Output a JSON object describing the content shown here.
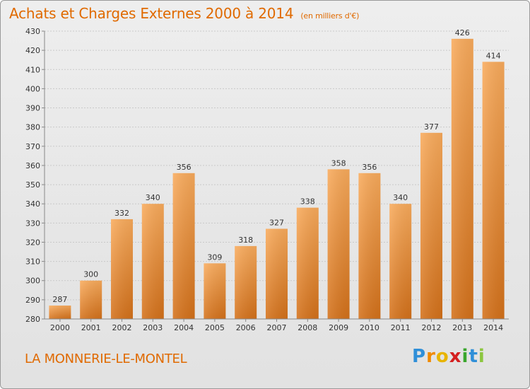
{
  "title": "Achats et Charges Externes 2000 à 2014",
  "subtitle": "(en milliers d'€)",
  "town": "LA MONNERIE-LE-MONTEL",
  "logo": {
    "text": "Proxiti",
    "letters": [
      "P",
      "r",
      "o",
      "x",
      "i",
      "t",
      "i"
    ],
    "colors": [
      "#2f8fd8",
      "#f08a00",
      "#e8b400",
      "#d42020",
      "#3aa62d",
      "#2f8fd8",
      "#8cc63f"
    ]
  },
  "colors": {
    "accent": "#e06a00",
    "bar_light": "#f8a95a",
    "bar_dark": "#d6731a",
    "label": "#333333"
  },
  "chart_data": {
    "type": "bar",
    "categories": [
      "2000",
      "2001",
      "2002",
      "2003",
      "2004",
      "2005",
      "2006",
      "2007",
      "2008",
      "2009",
      "2010",
      "2011",
      "2012",
      "2013",
      "2014"
    ],
    "values": [
      287,
      300,
      332,
      340,
      356,
      309,
      318,
      327,
      338,
      358,
      356,
      340,
      377,
      426,
      414
    ],
    "data_labels": [
      "287",
      "300",
      "332",
      "340",
      "356",
      "309",
      "318",
      "327",
      "338",
      "358",
      "356",
      "340",
      "377",
      "426",
      "414"
    ],
    "yticks": [
      "280",
      "290",
      "300",
      "310",
      "320",
      "330",
      "340",
      "350",
      "360",
      "370",
      "380",
      "390",
      "400",
      "410",
      "420",
      "430"
    ],
    "ylim": [
      280,
      430
    ],
    "grid": true,
    "title": "Achats et Charges Externes 2000 à 2014",
    "xlabel": "",
    "ylabel": ""
  }
}
